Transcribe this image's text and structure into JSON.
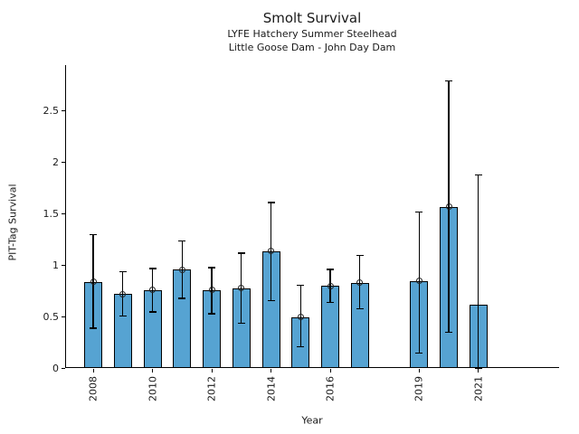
{
  "header": {
    "title": "Smolt Survival",
    "subtitle1": "LYFE Hatchery Summer Steelhead",
    "subtitle2": "Little Goose Dam - John Day Dam"
  },
  "axes": {
    "x_label": "Year",
    "y_label": "PIT-Tag Survival",
    "y_ticks": [
      "0",
      "0.5",
      "1",
      "1.5",
      "2",
      "2.5"
    ],
    "x_tick_labels": [
      "2008",
      "2010",
      "2012",
      "2014",
      "2016",
      "2019",
      "2021"
    ]
  },
  "colors": {
    "bar_fill": "#56a3d2",
    "bar_edge": "#000000",
    "error_bar": "#000000",
    "background": "#ffffff"
  },
  "chart_data": {
    "type": "bar",
    "title": "Smolt Survival",
    "subtitles": [
      "LYFE Hatchery Summer Steelhead",
      "Little Goose Dam - John Day Dam"
    ],
    "xlabel": "Year",
    "ylabel": "PIT-Tag Survival",
    "ylim": [
      0,
      2.94
    ],
    "grid": false,
    "legend": false,
    "x": [
      2008,
      2009,
      2010,
      2011,
      2012,
      2013,
      2014,
      2015,
      2016,
      2017,
      2019,
      2020,
      2021
    ],
    "values": [
      0.84,
      0.72,
      0.76,
      0.96,
      0.76,
      0.78,
      1.14,
      0.5,
      0.8,
      0.83,
      0.85,
      1.57,
      0.62
    ],
    "error_low": [
      0.39,
      0.51,
      0.55,
      0.68,
      0.53,
      0.44,
      0.66,
      0.21,
      0.64,
      0.58,
      0.15,
      0.35,
      0.0
    ],
    "error_high": [
      1.3,
      0.94,
      0.97,
      1.24,
      0.98,
      1.12,
      1.61,
      0.81,
      0.96,
      1.1,
      1.52,
      2.79,
      1.88
    ],
    "point_marker": [
      true,
      true,
      true,
      true,
      true,
      true,
      true,
      true,
      true,
      true,
      true,
      true,
      false
    ],
    "missing_years": [
      2018
    ],
    "y_tick_values": [
      0,
      0.5,
      1,
      1.5,
      2,
      2.5
    ],
    "x_tick_years": [
      2008,
      2010,
      2012,
      2014,
      2016,
      2019,
      2021
    ]
  }
}
